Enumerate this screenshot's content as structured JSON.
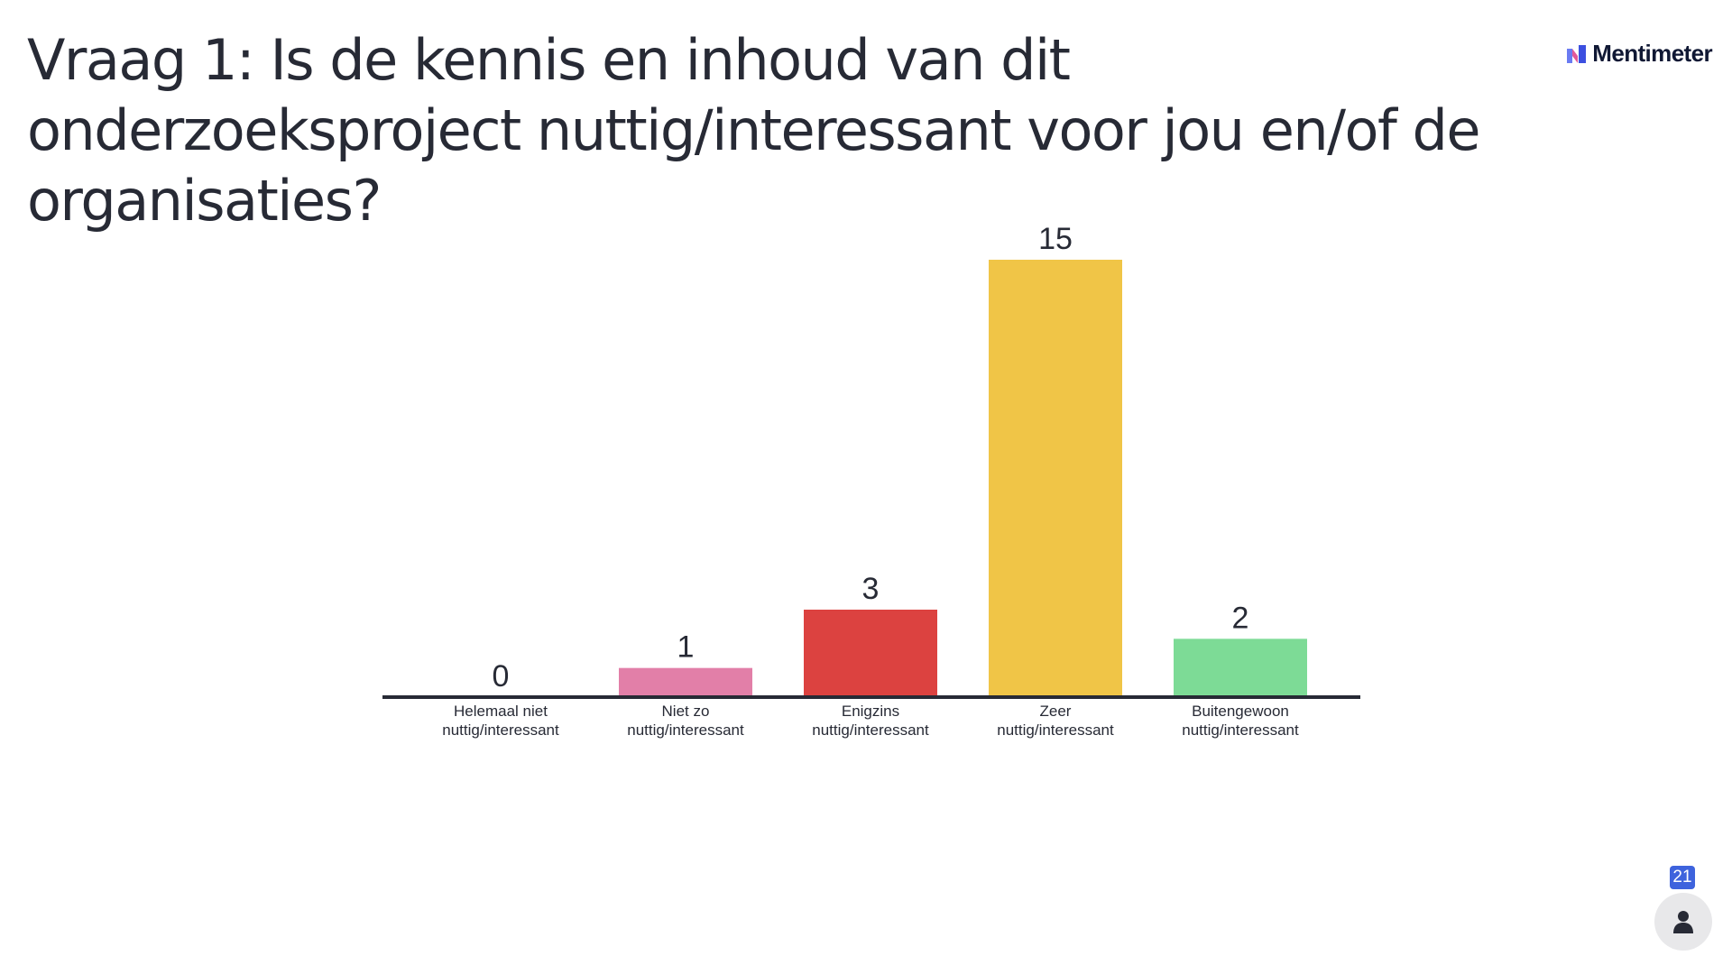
{
  "title": "Vraag 1: Is de kennis en inhoud van dit onderzoeksproject nuttig/interessant voor jou en/of de organisaties?",
  "brand": {
    "name": "Mentimeter",
    "icon": "mentimeter-logo-icon"
  },
  "participants": {
    "count": "21",
    "icon": "person-icon"
  },
  "chart_data": {
    "type": "bar",
    "title": "",
    "xlabel": "",
    "ylabel": "",
    "ylim": [
      0,
      15
    ],
    "grid": false,
    "categories": [
      [
        "Helemaal niet",
        "nuttig/interessant"
      ],
      [
        "Niet zo",
        "nuttig/interessant"
      ],
      [
        "Enigzins",
        "nuttig/interessant"
      ],
      [
        "Zeer",
        "nuttig/interessant"
      ],
      [
        "Buitengewoon",
        "nuttig/interessant"
      ]
    ],
    "values": [
      0,
      1,
      3,
      15,
      2
    ],
    "colors": [
      "#f3cdda",
      "#e27fa8",
      "#dc4240",
      "#f0c547",
      "#7ddb96"
    ]
  }
}
